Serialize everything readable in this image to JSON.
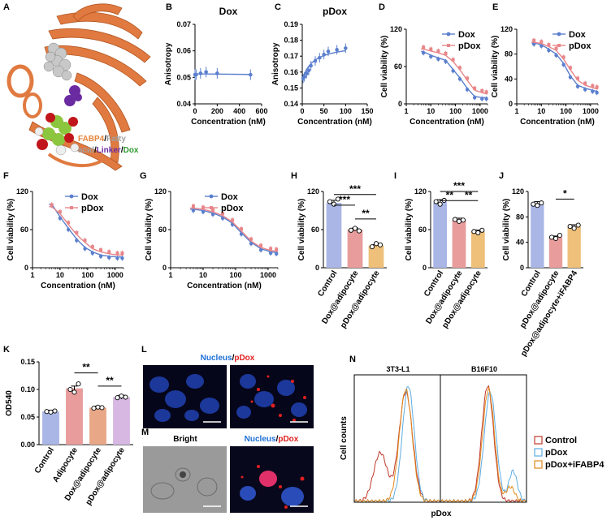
{
  "panel_letters": {
    "A": "A",
    "B": "B",
    "C": "C",
    "D": "D",
    "E": "E",
    "F": "F",
    "G": "G",
    "H": "H",
    "I": "I",
    "J": "J",
    "K": "K",
    "L": "L",
    "M": "M",
    "N": "N"
  },
  "panelA": {
    "fabp4": "FABP4",
    "slash1": "/",
    "fatty": "Fatty",
    "acid": "acid",
    "slash2": "/",
    "linker": "Linker",
    "slash3": "/",
    "dox": "Dox",
    "colors": {
      "fabp4": "#e8843a",
      "fatty": "#a0a0a0",
      "linker": "#6a2aa0",
      "dox": "#2e9a2e"
    }
  },
  "microscopy": {
    "L_title_a": "Nucleus",
    "L_title_sep": "/",
    "L_title_b": "pDox",
    "M_left_title": "Bright",
    "M_title_a": "Nucleus",
    "M_title_sep": "/",
    "M_title_b": "pDox",
    "nucleus_color": "#1d6fd6",
    "pdox_color": "#e02020"
  },
  "colors": {
    "dox": "#5b7fce",
    "pdox": "#e8868a",
    "control_bar": "#a9b6e6",
    "adip_bar": "#e89c9c",
    "dox_adip_bar": "#e8a888",
    "pdox_adip_bar": "#efc07a",
    "k_pdox_bar": "#d7b8e3"
  },
  "chart_data": [
    {
      "id": "B",
      "type": "scatter",
      "title": "Dox",
      "xlabel": "Concentration (nM)",
      "ylabel": "Anisotropy",
      "xlim": [
        0,
        600
      ],
      "ylim": [
        0.04,
        0.07
      ],
      "xticks": [
        0,
        200,
        400,
        600
      ],
      "yticks": [
        0.04,
        0.05,
        0.06,
        0.07
      ],
      "x": [
        0,
        10,
        50,
        100,
        200,
        500
      ],
      "y": [
        0.051,
        0.051,
        0.0515,
        0.052,
        0.0515,
        0.051
      ],
      "err": [
        0.002,
        0.002,
        0.002,
        0.002,
        0.002,
        0.002
      ]
    },
    {
      "id": "C",
      "type": "scatter",
      "title": "pDox",
      "xlabel": "Concentration (nM)",
      "ylabel": "Anisotropy",
      "xlim": [
        0,
        150
      ],
      "ylim": [
        0.14,
        0.19
      ],
      "xticks": [
        0,
        50,
        100,
        150
      ],
      "yticks": [
        0.14,
        0.15,
        0.16,
        0.17,
        0.18,
        0.19
      ],
      "x": [
        2,
        5,
        10,
        15,
        20,
        30,
        40,
        50,
        60,
        80,
        100
      ],
      "y": [
        0.156,
        0.157,
        0.159,
        0.161,
        0.164,
        0.167,
        0.169,
        0.171,
        0.173,
        0.174,
        0.175
      ],
      "err": [
        0.003,
        0.003,
        0.003,
        0.003,
        0.003,
        0.003,
        0.003,
        0.003,
        0.003,
        0.003,
        0.003
      ]
    },
    {
      "id": "D",
      "type": "line",
      "xlabel": "Concentration (nM)",
      "ylabel": "Cell viability (%)",
      "log_x": true,
      "xlim": [
        1,
        2000
      ],
      "ylim": [
        0,
        120
      ],
      "xticks": [
        1,
        10,
        100,
        1000
      ],
      "xticklabels": [
        "1",
        "10",
        "100",
        "1000"
      ],
      "yticks": [
        0,
        60,
        120
      ],
      "series": [
        {
          "name": "Dox",
          "x": [
            5,
            10,
            20,
            40,
            80,
            150,
            300,
            600,
            1200,
            1800
          ],
          "y": [
            84,
            78,
            74,
            70,
            55,
            42,
            25,
            12,
            10,
            10
          ]
        },
        {
          "name": "pDox",
          "x": [
            5,
            10,
            20,
            40,
            80,
            150,
            300,
            600,
            1200,
            1800
          ],
          "y": [
            88,
            85,
            82,
            78,
            68,
            55,
            38,
            22,
            18,
            16
          ]
        }
      ]
    },
    {
      "id": "E",
      "type": "line",
      "xlabel": "Concentration (nM)",
      "ylabel": "Cell viability (%)",
      "log_x": true,
      "xlim": [
        1,
        2000
      ],
      "ylim": [
        0,
        120
      ],
      "xticks": [
        1,
        10,
        100,
        1000
      ],
      "xticklabels": [
        "1",
        "10",
        "100",
        "1000"
      ],
      "yticks": [
        0,
        40,
        80,
        120
      ],
      "series": [
        {
          "name": "Dox",
          "x": [
            5,
            10,
            20,
            40,
            80,
            150,
            300,
            600,
            1200,
            1800
          ],
          "y": [
            98,
            95,
            88,
            80,
            65,
            45,
            30,
            25,
            22,
            20
          ]
        },
        {
          "name": "pDox",
          "x": [
            5,
            10,
            20,
            40,
            80,
            150,
            300,
            600,
            1200,
            1800
          ],
          "y": [
            99,
            97,
            92,
            86,
            72,
            55,
            38,
            30,
            26,
            24
          ]
        }
      ]
    },
    {
      "id": "F",
      "type": "line",
      "xlabel": "Concentration (nM)",
      "ylabel": "Cell viability (%)",
      "log_x": true,
      "xlim": [
        1,
        2000
      ],
      "ylim": [
        0,
        120
      ],
      "xticks": [
        1,
        10,
        100,
        1000
      ],
      "xticklabels": [
        "1",
        "10",
        "100",
        "1000"
      ],
      "yticks": [
        0,
        60,
        120
      ],
      "series": [
        {
          "name": "Dox",
          "x": [
            5,
            10,
            20,
            40,
            80,
            150,
            300,
            600,
            1200,
            1800
          ],
          "y": [
            100,
            80,
            62,
            45,
            32,
            25,
            20,
            18,
            17,
            17
          ]
        },
        {
          "name": "pDox",
          "x": [
            5,
            10,
            20,
            40,
            80,
            150,
            300,
            600,
            1200,
            1800
          ],
          "y": [
            96,
            85,
            68,
            52,
            40,
            30,
            25,
            22,
            20,
            20
          ]
        }
      ]
    },
    {
      "id": "G",
      "type": "line",
      "xlabel": "Concentration (nM)",
      "ylabel": "Cell viability (%)",
      "log_x": true,
      "xlim": [
        1,
        2000
      ],
      "ylim": [
        0,
        120
      ],
      "xticks": [
        1,
        10,
        100,
        1000
      ],
      "xticklabels": [
        "1",
        "10",
        "100",
        "1000"
      ],
      "yticks": [
        0,
        60,
        120
      ],
      "series": [
        {
          "name": "Dox",
          "x": [
            5,
            10,
            20,
            40,
            80,
            150,
            300,
            600,
            1200,
            1800
          ],
          "y": [
            92,
            90,
            86,
            80,
            70,
            55,
            40,
            30,
            25,
            24
          ]
        },
        {
          "name": "pDox",
          "x": [
            5,
            10,
            20,
            40,
            80,
            150,
            300,
            600,
            1200,
            1800
          ],
          "y": [
            94,
            92,
            88,
            82,
            72,
            58,
            42,
            32,
            27,
            26
          ]
        }
      ]
    },
    {
      "id": "H",
      "type": "bar",
      "ylabel": "Cell viability (%)",
      "ylim": [
        0,
        120
      ],
      "yticks": [
        0,
        60,
        120
      ],
      "categories": [
        "Control",
        "Dox@adipocyte",
        "pDox@adipocyte"
      ],
      "values": [
        102,
        60,
        35
      ],
      "points": [
        [
          104,
          100,
          108
        ],
        [
          59,
          62,
          58
        ],
        [
          33,
          38,
          36
        ]
      ],
      "significance": [
        {
          "pair": [
            1,
            2
          ],
          "label": "**"
        },
        {
          "pair": [
            0,
            1
          ],
          "label": "***"
        },
        {
          "pair": [
            0,
            2
          ],
          "label": "***"
        }
      ]
    },
    {
      "id": "I",
      "type": "bar",
      "ylabel": "Cell viability (%)",
      "ylim": [
        0,
        120
      ],
      "yticks": [
        0,
        60,
        120
      ],
      "categories": [
        "Control",
        "Dox@adipocyte",
        "pDox@adipocyte"
      ],
      "values": [
        103,
        75,
        57
      ],
      "points": [
        [
          104,
          100,
          106
        ],
        [
          76,
          73,
          75
        ],
        [
          57,
          55,
          59
        ]
      ],
      "significance": [
        {
          "pair": [
            0,
            1
          ],
          "label": "**"
        },
        {
          "pair": [
            1,
            2
          ],
          "label": "**"
        },
        {
          "pair": [
            0,
            2
          ],
          "label": "***"
        }
      ]
    },
    {
      "id": "J",
      "type": "bar",
      "ylabel": "Cell viability (%)",
      "ylim": [
        0,
        120
      ],
      "yticks": [
        0,
        40,
        80,
        120
      ],
      "categories": [
        "Control",
        "pDox@adipocyte",
        "pDox@adipocyte+iFABP4"
      ],
      "values": [
        100,
        48,
        65
      ],
      "points": [
        [
          100,
          98,
          102
        ],
        [
          48,
          46,
          51
        ],
        [
          65,
          62,
          67
        ]
      ],
      "significance": [
        {
          "pair": [
            1,
            2
          ],
          "label": "*"
        }
      ]
    },
    {
      "id": "K",
      "type": "bar",
      "ylabel": "OD540",
      "ylim": [
        0.0,
        0.15
      ],
      "yticks": [
        0.0,
        0.05,
        0.1,
        0.15
      ],
      "yticklabels": [
        "0.00",
        "0.05",
        "0.10",
        "0.15"
      ],
      "categories": [
        "Control",
        "Adipocyte",
        "Dox@adipocyte",
        "pDox@adipocyte"
      ],
      "values": [
        0.06,
        0.102,
        0.067,
        0.086
      ],
      "points": [
        [
          0.06,
          0.059,
          0.061
        ],
        [
          0.1,
          0.095,
          0.11
        ],
        [
          0.066,
          0.068,
          0.067
        ],
        [
          0.085,
          0.088,
          0.086
        ]
      ],
      "significance": [
        {
          "pair": [
            1,
            2
          ],
          "label": "**"
        },
        {
          "pair": [
            2,
            3
          ],
          "label": "**"
        }
      ]
    },
    {
      "id": "N",
      "type": "area",
      "xlabel": "pDox",
      "ylabel": "Cell counts",
      "panels": [
        "3T3-L1",
        "B16F10"
      ],
      "series": [
        {
          "name": "Control",
          "color": "#c0392b"
        },
        {
          "name": "pDox",
          "color": "#5dade2"
        },
        {
          "name": "pDox+iFABP4",
          "color": "#e08a1e"
        }
      ]
    }
  ]
}
